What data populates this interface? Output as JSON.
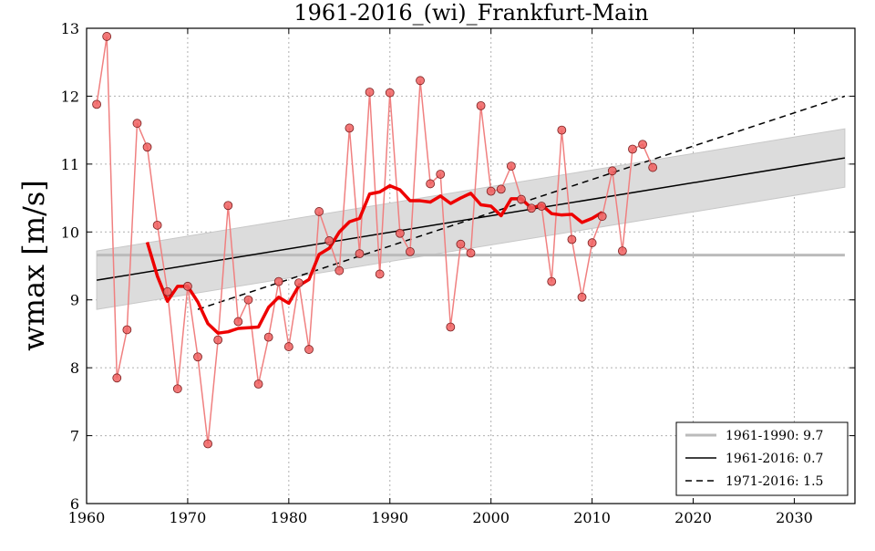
{
  "chart_data": {
    "type": "line",
    "title": "1961-2016_(wi)_Frankfurt-Main",
    "ylabel": "wmax [m/s]",
    "xlabel": "",
    "xlim": [
      1960,
      2036
    ],
    "ylim": [
      6,
      13
    ],
    "xticks": [
      1960,
      1970,
      1980,
      1990,
      2000,
      2010,
      2020,
      2030
    ],
    "yticks": [
      6,
      7,
      8,
      9,
      10,
      11,
      12,
      13
    ],
    "grid": true,
    "legend_position": "bottom-right",
    "colors": {
      "annual": "#f08080",
      "annual_marker": "#f06060",
      "running_mean": "#ee0000",
      "mean_line": "#bbbbbb",
      "band": "#dcdcdc",
      "trend": "#000000"
    },
    "series": [
      {
        "name": "annual",
        "x": [
          1961,
          1962,
          1963,
          1964,
          1965,
          1966,
          1967,
          1968,
          1969,
          1970,
          1971,
          1972,
          1973,
          1974,
          1975,
          1976,
          1977,
          1978,
          1979,
          1980,
          1981,
          1982,
          1983,
          1984,
          1985,
          1986,
          1987,
          1988,
          1989,
          1990,
          1991,
          1992,
          1993,
          1994,
          1995,
          1996,
          1997,
          1998,
          1999,
          2000,
          2001,
          2002,
          2003,
          2004,
          2005,
          2006,
          2007,
          2008,
          2009,
          2010,
          2011,
          2012,
          2013,
          2014,
          2015,
          2016
        ],
        "values": [
          11.88,
          12.88,
          7.85,
          8.56,
          11.6,
          11.25,
          10.1,
          9.12,
          7.69,
          9.2,
          8.16,
          6.88,
          8.41,
          10.39,
          8.68,
          9.0,
          7.76,
          8.45,
          9.27,
          8.31,
          9.25,
          8.27,
          10.3,
          9.87,
          9.43,
          11.53,
          9.68,
          12.06,
          9.38,
          12.05,
          9.98,
          9.71,
          12.23,
          10.71,
          10.85,
          8.6,
          9.82,
          9.69,
          11.86,
          10.6,
          10.63,
          10.97,
          10.48,
          10.35,
          10.38,
          9.27,
          11.5,
          9.89,
          9.04,
          9.84,
          10.23,
          10.9,
          9.72,
          11.22,
          11.29,
          10.95
        ]
      },
      {
        "name": "running_mean",
        "x": [
          1966,
          1967,
          1968,
          1969,
          1970,
          1971,
          1972,
          1973,
          1974,
          1975,
          1976,
          1977,
          1978,
          1979,
          1980,
          1981,
          1982,
          1983,
          1984,
          1985,
          1986,
          1987,
          1988,
          1989,
          1990,
          1991,
          1992,
          1993,
          1994,
          1995,
          1996,
          1997,
          1998,
          1999,
          2000,
          2001,
          2002,
          2003,
          2004,
          2005,
          2006,
          2007,
          2008,
          2009,
          2010,
          2011
        ],
        "values": [
          9.85,
          9.35,
          8.98,
          9.2,
          9.2,
          8.97,
          8.65,
          8.51,
          8.53,
          8.58,
          8.59,
          8.6,
          8.89,
          9.04,
          8.95,
          9.21,
          9.3,
          9.67,
          9.76,
          10.0,
          10.15,
          10.2,
          10.56,
          10.59,
          10.68,
          10.62,
          10.46,
          10.46,
          10.44,
          10.53,
          10.42,
          10.5,
          10.57,
          10.4,
          10.38,
          10.24,
          10.49,
          10.49,
          10.35,
          10.4,
          10.27,
          10.25,
          10.26,
          10.14,
          10.2,
          10.29
        ]
      },
      {
        "name": "1961-1990: 9.7",
        "kind": "mean",
        "value": 9.66,
        "x_range": [
          1961,
          2035
        ]
      },
      {
        "name": "1961-2016: 0.7",
        "kind": "trend",
        "x": [
          1961,
          2035
        ],
        "values": [
          9.29,
          11.09
        ],
        "band_upper": [
          9.72,
          11.52
        ],
        "band_lower": [
          8.86,
          10.66
        ]
      },
      {
        "name": "1971-2016: 1.5",
        "kind": "trend-dashed",
        "x": [
          1971,
          2035
        ],
        "values": [
          8.86,
          12.0
        ]
      }
    ],
    "legend": [
      {
        "label": "1961-1990: 9.7",
        "style": "mean"
      },
      {
        "label": "1961-2016: 0.7",
        "style": "trend"
      },
      {
        "label": "1971-2016: 1.5",
        "style": "trend-dashed"
      }
    ]
  }
}
